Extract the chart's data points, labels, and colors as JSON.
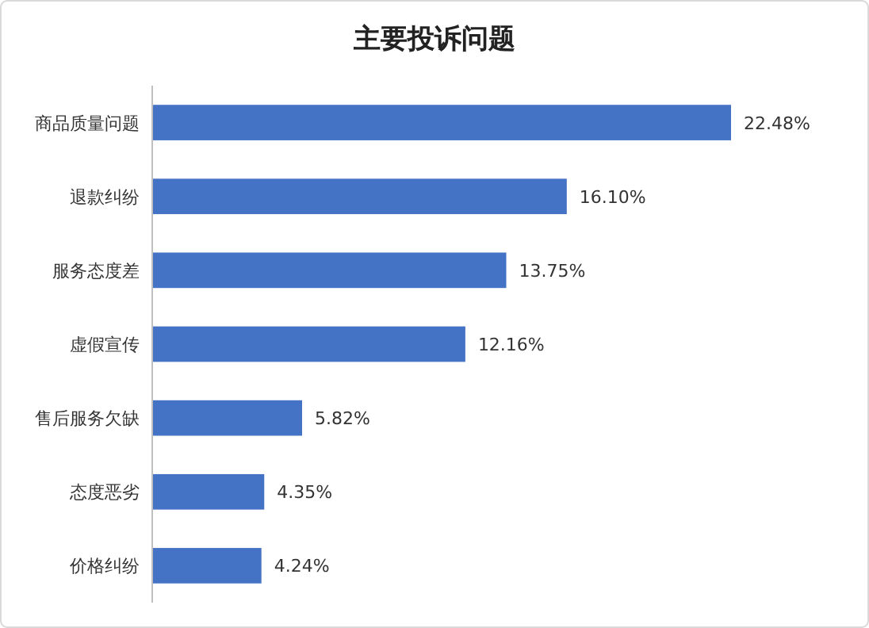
{
  "chart_data": {
    "type": "bar",
    "orientation": "horizontal",
    "title": "主要投诉问题",
    "categories": [
      "商品质量问题",
      "退款纠纷",
      "服务态度差",
      "虚假宣传",
      "售后服务欠缺",
      "态度恶劣",
      "价格纠纷"
    ],
    "values": [
      22.48,
      16.1,
      13.75,
      12.16,
      5.82,
      4.35,
      4.24
    ],
    "value_labels": [
      "22.48%",
      "16.10%",
      "13.75%",
      "12.16%",
      "5.82%",
      "4.35%",
      "4.24%"
    ],
    "color": "#4472c4"
  }
}
